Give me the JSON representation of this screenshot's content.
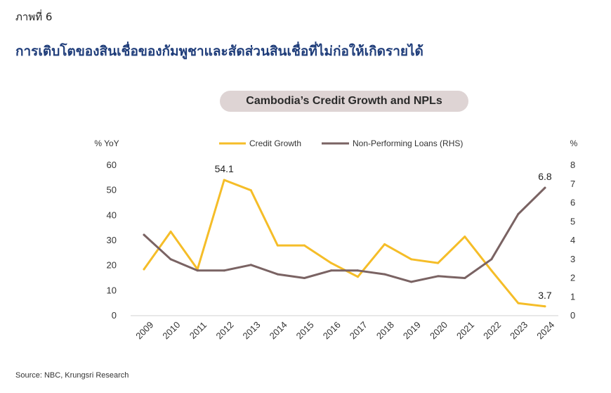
{
  "figure_label": "ภาพที่ 6",
  "figure_title": "การเติบโตของสินเชื่อของกัมพูชาและสัดส่วนสินเชื่อที่ไม่ก่อให้เกิดรายได้",
  "source": "Source: NBC, Krungsri Research",
  "colors": {
    "credit": "#f5bd28",
    "npl": "#7a6363",
    "axis": "#d0d0d0",
    "pill": "#ded4d4"
  },
  "chart_data": {
    "type": "line",
    "title": "Cambodia’s Credit Growth and NPLs",
    "ylabel_left": "% YoY",
    "ylabel_right": "%",
    "categories": [
      "2009",
      "2010",
      "2011",
      "2012",
      "2013",
      "2014",
      "2015",
      "2016",
      "2017",
      "2018",
      "2019",
      "2020",
      "2021",
      "2022",
      "2023",
      "2024"
    ],
    "ylim_left": [
      0,
      60
    ],
    "yticks_left": [
      "0",
      "10",
      "20",
      "30",
      "40",
      "50",
      "60"
    ],
    "ylim_right": [
      0,
      8
    ],
    "yticks_right": [
      "0",
      "1",
      "2",
      "3",
      "4",
      "5",
      "6",
      "7",
      "8"
    ],
    "legend_position": "top-center",
    "series": [
      {
        "name": "Credit Growth",
        "axis": "left",
        "values": [
          18.5,
          33.5,
          18.5,
          54.1,
          50,
          28,
          28,
          21,
          15.5,
          28.5,
          22.5,
          21,
          31.5,
          18,
          5,
          3.7
        ]
      },
      {
        "name": "Non-Performing Loans (RHS)",
        "axis": "right",
        "values": [
          4.3,
          3.0,
          2.4,
          2.4,
          2.7,
          2.2,
          2.0,
          2.4,
          2.4,
          2.2,
          1.8,
          2.1,
          2.0,
          3.0,
          5.4,
          6.8
        ]
      }
    ],
    "annotations": [
      {
        "series": 0,
        "index": 3,
        "text": "54.1"
      },
      {
        "series": 0,
        "index": 15,
        "text": "3.7"
      },
      {
        "series": 1,
        "index": 15,
        "text": "6.8"
      }
    ]
  }
}
